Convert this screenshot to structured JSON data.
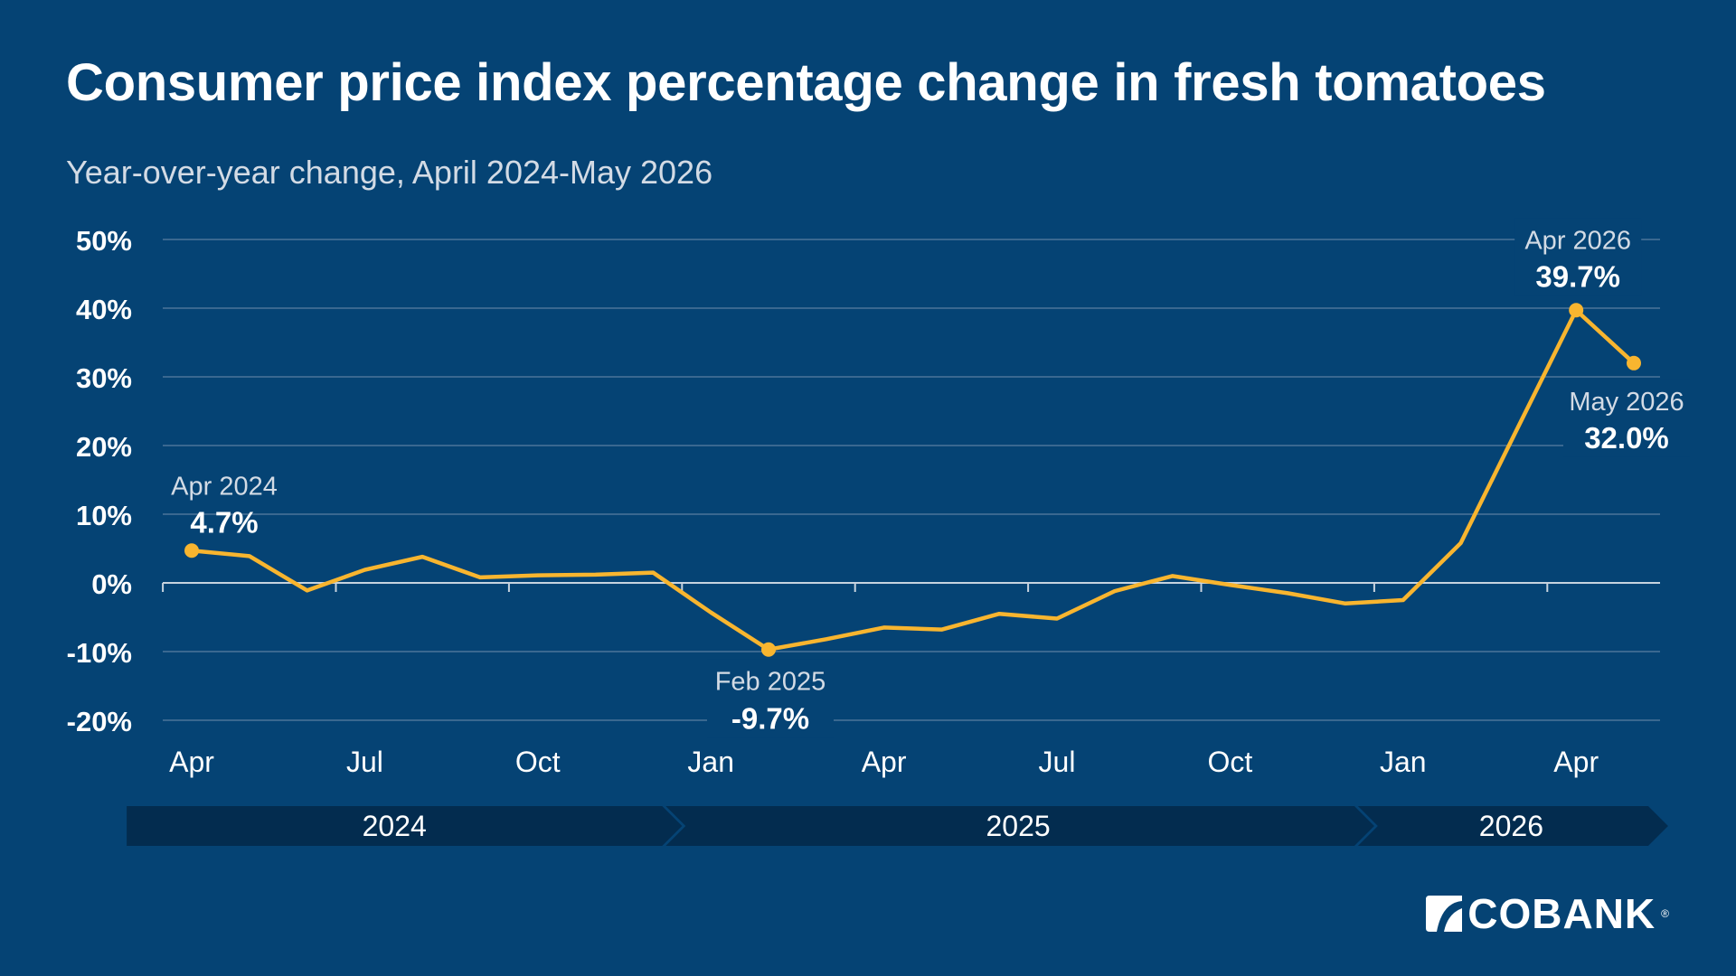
{
  "title": "Consumer price index percentage change in fresh tomatoes",
  "subtitle": "Year-over-year change, April 2024-May 2026",
  "logo_text": "COBANK",
  "colors": {
    "background": "#054374",
    "line": "#F8B52F",
    "gridline": "#5a7fa0",
    "zero_line": "#c7d3df",
    "year_band": "#032c4f",
    "label": "#ffffff",
    "label_muted": "#d3dbe5"
  },
  "chart_data": {
    "type": "line",
    "title": "Consumer price index percentage change in fresh tomatoes",
    "subtitle": "Year-over-year change, April 2024-May 2026",
    "xlabel": "",
    "ylabel": "",
    "ylim": [
      -20,
      50
    ],
    "yticks": [
      50,
      40,
      30,
      20,
      10,
      0,
      -10,
      -20
    ],
    "ytick_labels": [
      "50%",
      "40%",
      "30%",
      "20%",
      "10%",
      "0%",
      "-10%",
      "-20%"
    ],
    "grid": true,
    "x": [
      "2024-04",
      "2024-05",
      "2024-06",
      "2024-07",
      "2024-08",
      "2024-09",
      "2024-10",
      "2024-11",
      "2024-12",
      "2025-01",
      "2025-02",
      "2025-03",
      "2025-04",
      "2025-05",
      "2025-06",
      "2025-07",
      "2025-08",
      "2025-09",
      "2025-10",
      "2025-11",
      "2025-12",
      "2026-01",
      "2026-02",
      "2026-03",
      "2026-04",
      "2026-05"
    ],
    "xtick_labels": [
      {
        "x": "2024-04",
        "label": "Apr"
      },
      {
        "x": "2024-07",
        "label": "Jul"
      },
      {
        "x": "2024-10",
        "label": "Oct"
      },
      {
        "x": "2025-01",
        "label": "Jan"
      },
      {
        "x": "2025-04",
        "label": "Apr"
      },
      {
        "x": "2025-07",
        "label": "Jul"
      },
      {
        "x": "2025-10",
        "label": "Oct"
      },
      {
        "x": "2026-01",
        "label": "Jan"
      },
      {
        "x": "2026-04",
        "label": "Apr"
      }
    ],
    "series": [
      {
        "values": [
          4.7,
          3.9,
          -1.1,
          1.9,
          3.8,
          0.8,
          1.1,
          1.2,
          1.5,
          -4.3,
          -9.7,
          -8.2,
          -6.5,
          -6.8,
          -4.5,
          -5.2,
          -1.2,
          1.0,
          -0.3,
          -1.5,
          -3.0,
          -2.5,
          5.8,
          22.8,
          39.7,
          32.0
        ]
      }
    ],
    "annotations": [
      {
        "x": "2024-04",
        "date_label": "Apr 2024",
        "value_label": "4.7%"
      },
      {
        "x": "2025-02",
        "date_label": "Feb 2025",
        "value_label": "-9.7%"
      },
      {
        "x": "2026-04",
        "date_label": "Apr 2026",
        "value_label": "39.7%"
      },
      {
        "x": "2026-05",
        "date_label": "May 2026",
        "value_label": "32.0%"
      }
    ],
    "year_bands": [
      {
        "label": "2024",
        "start": "2024-04",
        "end": "2024-12"
      },
      {
        "label": "2025",
        "start": "2025-01",
        "end": "2025-12"
      },
      {
        "label": "2026",
        "start": "2026-01",
        "end": "2026-05"
      }
    ]
  }
}
